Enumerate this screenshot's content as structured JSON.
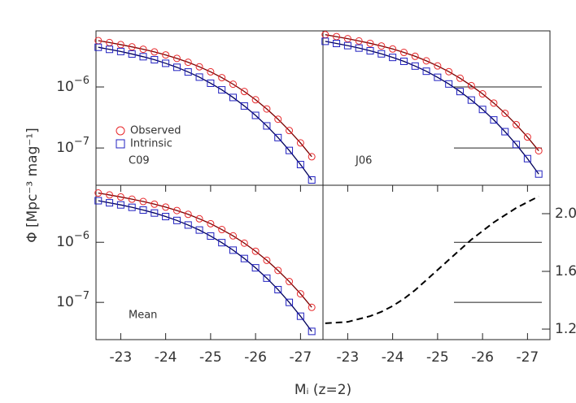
{
  "chart_data": [
    {
      "type": "scatter",
      "label": "C09",
      "log_y": true,
      "x": [
        -22.5,
        -22.75,
        -23,
        -23.25,
        -23.5,
        -23.75,
        -24,
        -24.25,
        -24.5,
        -24.75,
        -25,
        -25.25,
        -25.5,
        -25.75,
        -26,
        -26.25,
        -26.5,
        -26.75,
        -27,
        -27.25
      ],
      "xlim": [
        -22.45,
        -27.5
      ],
      "ylim": [
        2.45e-08,
        8.3e-06
      ],
      "yticks": [
        {
          "value": 1e-06,
          "label": "10",
          "exponent": "−6"
        },
        {
          "value": 1e-07,
          "label": "10",
          "exponent": "−7"
        }
      ],
      "series": [
        {
          "name": "Observed",
          "color": "#e8272a",
          "marker": "circle",
          "values": [
            5.75e-06,
            5.34e-06,
            4.94e-06,
            4.54e-06,
            4.15e-06,
            3.75e-06,
            3.35e-06,
            2.94e-06,
            2.54e-06,
            2.14e-06,
            1.77e-06,
            1.42e-06,
            1.11e-06,
            8.42e-07,
            6.17e-07,
            4.36e-07,
            2.96e-07,
            1.93e-07,
            1.21e-07,
            7.19e-08
          ]
        },
        {
          "name": "Intrinsic",
          "color": "#2020c0",
          "marker": "square",
          "values": [
            4.47e-06,
            4.13e-06,
            3.81e-06,
            3.47e-06,
            3.13e-06,
            2.79e-06,
            2.44e-06,
            2.1e-06,
            1.76e-06,
            1.45e-06,
            1.15e-06,
            8.96e-07,
            6.73e-07,
            4.88e-07,
            3.42e-07,
            2.3e-07,
            1.48e-07,
            9.11e-08,
            5.35e-08,
            2.99e-08
          ]
        }
      ]
    },
    {
      "type": "scatter",
      "label": "J06",
      "log_y": true,
      "x": [
        -22.5,
        -22.75,
        -23,
        -23.25,
        -23.5,
        -23.75,
        -24,
        -24.25,
        -24.5,
        -24.75,
        -25,
        -25.25,
        -25.5,
        -25.75,
        -26,
        -26.25,
        -26.5,
        -26.75,
        -27,
        -27.25
      ],
      "xlim": [
        -22.45,
        -27.5
      ],
      "ylim": [
        2.45e-08,
        8.3e-06
      ],
      "series": [
        {
          "color": "#e8272a",
          "marker": "circle",
          "values": [
            7.19e-06,
            6.68e-06,
            6.18e-06,
            5.68e-06,
            5.19e-06,
            4.69e-06,
            4.19e-06,
            3.68e-06,
            3.18e-06,
            2.68e-06,
            2.21e-06,
            1.78e-06,
            1.39e-06,
            1.05e-06,
            7.71e-07,
            5.45e-07,
            3.7e-07,
            2.41e-07,
            1.51e-07,
            8.99e-08
          ]
        },
        {
          "color": "#2020c0",
          "marker": "square",
          "values": [
            5.59e-06,
            5.16e-06,
            4.76e-06,
            4.34e-06,
            3.91e-06,
            3.49e-06,
            3.05e-06,
            2.63e-06,
            2.2e-06,
            1.81e-06,
            1.44e-06,
            1.12e-06,
            8.41e-07,
            6.1e-07,
            4.28e-07,
            2.88e-07,
            1.85e-07,
            1.14e-07,
            6.69e-08,
            3.74e-08
          ]
        }
      ]
    },
    {
      "type": "scatter",
      "label": "Mean",
      "log_y": true,
      "x": [
        -22.5,
        -22.75,
        -23,
        -23.25,
        -23.5,
        -23.75,
        -24,
        -24.25,
        -24.5,
        -24.75,
        -25,
        -25.25,
        -25.5,
        -25.75,
        -26,
        -26.25,
        -26.5,
        -26.75,
        -27,
        -27.25
      ],
      "xlim": [
        -22.45,
        -27.5
      ],
      "ylim": [
        2.4e-08,
        8.9e-06
      ],
      "xticks": [
        -23,
        -24,
        -25,
        -26,
        -27
      ],
      "yticks": [
        {
          "value": 1e-06,
          "label": "10",
          "exponent": "−6"
        },
        {
          "value": 1e-07,
          "label": "10",
          "exponent": "−7"
        }
      ],
      "series": [
        {
          "color": "#e8272a",
          "marker": "circle",
          "values": [
            6.61e-06,
            6.14e-06,
            5.68e-06,
            5.22e-06,
            4.77e-06,
            4.31e-06,
            3.85e-06,
            3.38e-06,
            2.92e-06,
            2.46e-06,
            2.04e-06,
            1.63e-06,
            1.28e-06,
            9.68e-07,
            7.1e-07,
            5.01e-07,
            3.4e-07,
            2.22e-07,
            1.39e-07,
            8.27e-08
          ]
        },
        {
          "color": "#2020c0",
          "marker": "square",
          "values": [
            4.92e-06,
            4.54e-06,
            4.19e-06,
            3.82e-06,
            3.44e-06,
            3.07e-06,
            2.68e-06,
            2.31e-06,
            1.94e-06,
            1.6e-06,
            1.27e-06,
            9.86e-07,
            7.4e-07,
            5.37e-07,
            3.76e-07,
            2.53e-07,
            1.63e-07,
            1e-07,
            5.89e-08,
            3.29e-08
          ]
        }
      ]
    },
    {
      "type": "line",
      "x": [
        -22.5,
        -22.75,
        -23,
        -23.25,
        -23.5,
        -23.75,
        -24,
        -24.25,
        -24.5,
        -24.75,
        -25,
        -25.25,
        -25.5,
        -25.75,
        -26,
        -26.25,
        -26.5,
        -26.75,
        -27,
        -27.25
      ],
      "xlim": [
        -22.45,
        -27.5
      ],
      "y2lim": [
        1.127,
        2.197
      ],
      "xticks": [
        -23,
        -24,
        -25,
        -26,
        -27
      ],
      "y2ticks": [
        1.2,
        1.6,
        {
          "value": 2,
          "label": "2.0"
        }
      ],
      "series": [
        {
          "axis": "y2",
          "color": "#000000",
          "dash": true,
          "values": [
            1.24,
            1.245,
            1.25,
            1.27,
            1.29,
            1.32,
            1.36,
            1.41,
            1.47,
            1.54,
            1.61,
            1.68,
            1.75,
            1.82,
            1.88,
            1.94,
            1.99,
            2.04,
            2.08,
            2.12
          ]
        }
      ]
    },
    {
      "type": "axes",
      "ylabel": "Φ [Mpc⁻³ mag⁻¹]",
      "xlabel": "Mᵢ (z=2)"
    }
  ]
}
